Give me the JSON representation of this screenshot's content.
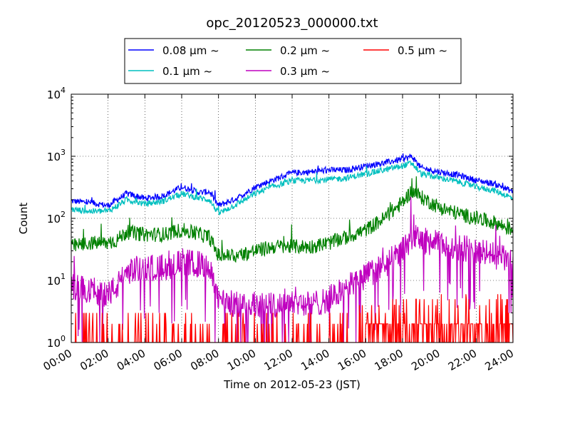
{
  "chart_data": {
    "type": "line",
    "title": "opc_20120523_000000.txt",
    "xlabel": "Time on 2012-05-23 (JST)",
    "ylabel": "Count",
    "yscale": "log",
    "ylim": [
      1,
      10000
    ],
    "xlim_hours": [
      0,
      24
    ],
    "grid": true,
    "legend_position": "top",
    "x_tick_labels": [
      "00:00",
      "02:00",
      "04:00",
      "06:00",
      "08:00",
      "10:00",
      "12:00",
      "14:00",
      "16:00",
      "18:00",
      "20:00",
      "22:00",
      "24:00"
    ],
    "y_tick_labels": [
      {
        "base": "10",
        "exp": "0"
      },
      {
        "base": "10",
        "exp": "1"
      },
      {
        "base": "10",
        "exp": "2"
      },
      {
        "base": "10",
        "exp": "3"
      },
      {
        "base": "10",
        "exp": "4"
      }
    ],
    "x_hours": [
      0,
      1,
      2,
      2.5,
      3,
      4,
      5,
      6,
      7,
      7.5,
      8,
      9,
      10,
      11,
      12,
      13,
      14,
      15,
      16,
      17,
      18,
      18.5,
      19,
      20,
      21,
      22,
      23,
      24
    ],
    "series": [
      {
        "name": "0.08 μm ~",
        "color": "#0000ff",
        "values": [
          190,
          180,
          160,
          200,
          250,
          210,
          230,
          320,
          260,
          270,
          160,
          210,
          320,
          420,
          540,
          560,
          600,
          600,
          700,
          780,
          900,
          1000,
          650,
          560,
          500,
          410,
          360,
          270
        ]
      },
      {
        "name": "0.1 μm ~",
        "color": "#00bfbf",
        "values": [
          140,
          130,
          130,
          160,
          200,
          170,
          190,
          250,
          210,
          200,
          120,
          170,
          250,
          330,
          400,
          410,
          420,
          450,
          520,
          600,
          700,
          780,
          520,
          450,
          390,
          320,
          280,
          210
        ]
      },
      {
        "name": "0.2 μm ~",
        "color": "#008000",
        "values": [
          35,
          40,
          40,
          45,
          60,
          55,
          55,
          65,
          55,
          50,
          25,
          25,
          30,
          35,
          35,
          35,
          40,
          50,
          65,
          100,
          180,
          280,
          220,
          150,
          120,
          100,
          85,
          65
        ]
      },
      {
        "name": "0.3 μm ~",
        "color": "#bf00bf",
        "values": [
          8,
          7,
          6,
          8,
          14,
          16,
          16,
          20,
          18,
          15,
          5,
          4,
          4,
          4,
          5,
          4,
          5,
          8,
          12,
          17,
          30,
          50,
          45,
          38,
          35,
          30,
          25,
          20
        ]
      },
      {
        "name": "0.5 μm ~",
        "color": "#ff0000",
        "values": [
          1,
          1,
          1,
          1,
          1,
          1,
          1,
          1,
          1,
          1,
          1,
          1,
          1,
          1,
          1,
          1,
          1,
          1,
          1.5,
          1.5,
          2,
          2,
          2,
          2,
          2,
          2,
          2,
          2
        ]
      }
    ]
  }
}
